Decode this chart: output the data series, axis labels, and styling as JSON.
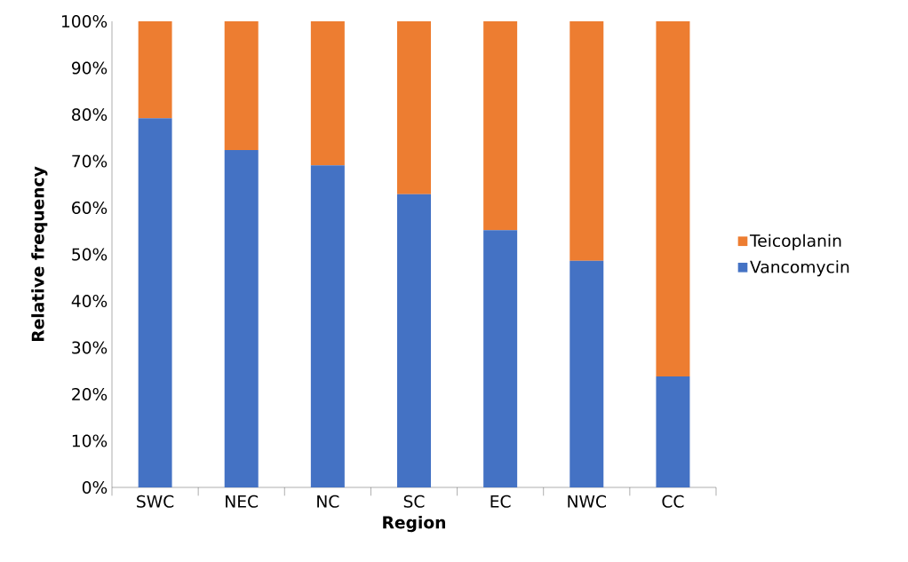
{
  "chart_data": {
    "type": "bar",
    "stacked": true,
    "xlabel": "Region",
    "ylabel": "Relative frequency",
    "categories": [
      "SWC",
      "NEC",
      "NC",
      "SC",
      "EC",
      "NWC",
      "CC"
    ],
    "series": [
      {
        "name": "Vancomycin",
        "color": "#4472c4",
        "values": [
          79.2,
          72.4,
          69.1,
          62.9,
          55.2,
          48.6,
          23.8
        ]
      },
      {
        "name": "Teicoplanin",
        "color": "#ed7d31",
        "values": [
          20.8,
          27.6,
          30.9,
          37.1,
          44.8,
          51.4,
          76.2
        ]
      }
    ],
    "ylim": [
      0,
      100
    ],
    "yticks": [
      {
        "value": 0,
        "label": "0%"
      },
      {
        "value": 10,
        "label": "10%"
      },
      {
        "value": 20,
        "label": "20%"
      },
      {
        "value": 30,
        "label": "30%"
      },
      {
        "value": 40,
        "label": "40%"
      },
      {
        "value": 50,
        "label": "50%"
      },
      {
        "value": 60,
        "label": "60%"
      },
      {
        "value": 70,
        "label": "70%"
      },
      {
        "value": 80,
        "label": "80%"
      },
      {
        "value": 90,
        "label": "90%"
      },
      {
        "value": 100,
        "label": "100%"
      }
    ],
    "grid": false,
    "legend": "right"
  }
}
